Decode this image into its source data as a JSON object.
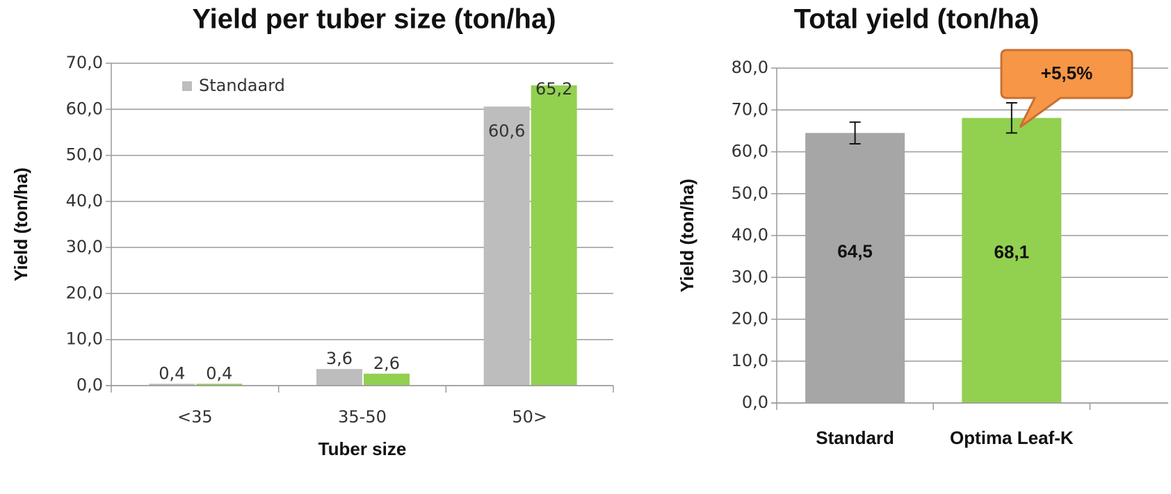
{
  "chart_data": [
    {
      "type": "bar",
      "title": "Yield per tuber size (ton/ha)",
      "y_label": "Yield (ton/ha)",
      "x_label": "Tuber size",
      "categories": [
        "<35",
        "35-50",
        "50>"
      ],
      "series": [
        {
          "name": "Standaard",
          "color": "#bdbdbd",
          "values": [
            0.4,
            3.6,
            60.6
          ],
          "value_labels": [
            "0,4",
            "3,6",
            "60,6"
          ]
        },
        {
          "color": "#92d050",
          "values": [
            0.4,
            2.6,
            65.2
          ],
          "value_labels": [
            "0,4",
            "2,6",
            "65,2"
          ]
        }
      ],
      "ylim": [
        0,
        70
      ],
      "yticks": [
        {
          "value": 0,
          "label": "0,0"
        },
        {
          "value": 10,
          "label": "10,0"
        },
        {
          "value": 20,
          "label": "20,0"
        },
        {
          "value": 30,
          "label": "30,0"
        },
        {
          "value": 40,
          "label": "40,0"
        },
        {
          "value": 50,
          "label": "50,0"
        },
        {
          "value": 60,
          "label": "60,0"
        },
        {
          "value": 70,
          "label": "70,0"
        }
      ],
      "grid": true,
      "legend": "top-left"
    },
    {
      "type": "errorbar",
      "title": "Total yield (ton/ha)",
      "y_label": "Yield (ton/ha)",
      "categories": [
        "Standard",
        "Optima Leaf-K"
      ],
      "values": [
        64.5,
        68.1
      ],
      "value_labels": [
        "64,5",
        "68,1"
      ],
      "errors": [
        2.6,
        3.6
      ],
      "colors": [
        "#a6a6a6",
        "#92d050"
      ],
      "annotation": "+5,5%",
      "ylim": [
        0,
        80
      ],
      "yticks": [
        {
          "value": 0,
          "label": "0,0"
        },
        {
          "value": 10,
          "label": "10,0"
        },
        {
          "value": 20,
          "label": "20,0"
        },
        {
          "value": 30,
          "label": "30,0"
        },
        {
          "value": 40,
          "label": "40,0"
        },
        {
          "value": 50,
          "label": "50,0"
        },
        {
          "value": 60,
          "label": "60,0"
        },
        {
          "value": 70,
          "label": "70,0"
        },
        {
          "value": 80,
          "label": "80,0"
        }
      ],
      "grid": true
    }
  ]
}
